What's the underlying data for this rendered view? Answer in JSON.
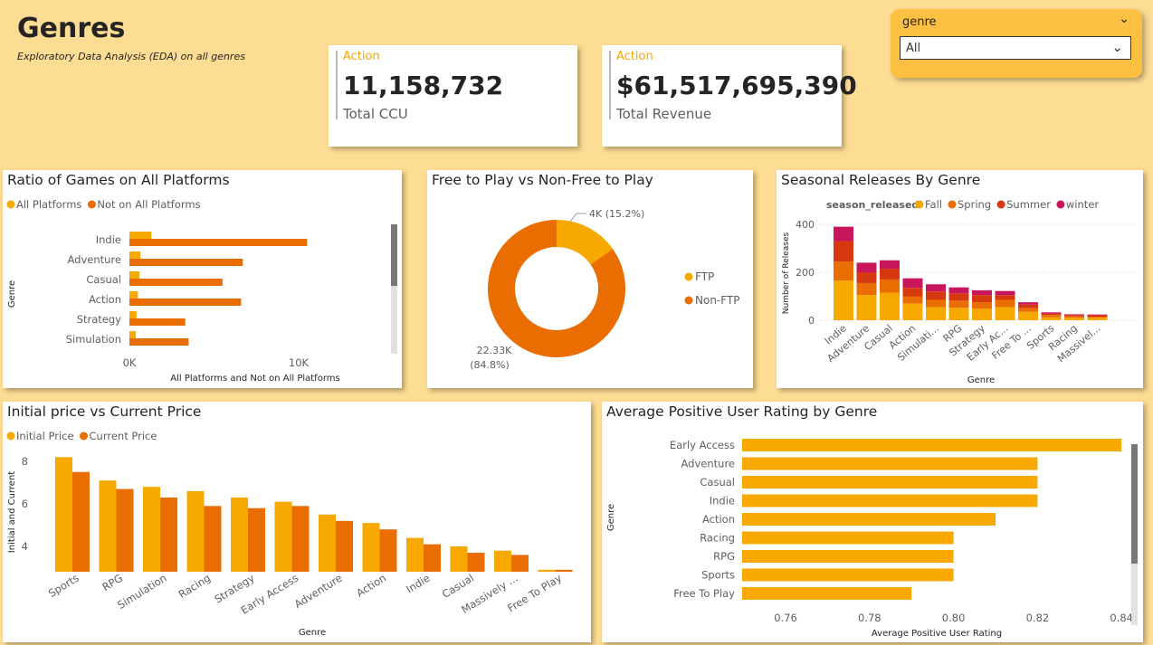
{
  "page": {
    "title": "Genres",
    "subtitle": "Exploratory Data Analysis (EDA) on all genres"
  },
  "kpis": [
    {
      "category": "Action",
      "value": "11,158,732",
      "label": "Total CCU"
    },
    {
      "category": "Action",
      "value": "$61,517,695,390",
      "label": "Total Revenue"
    }
  ],
  "slicer": {
    "header": "genre",
    "selected": "All",
    "icons": {
      "header": "chevron-down-icon",
      "dropdown": "chevron-down-icon"
    }
  },
  "colors": {
    "background": "#fddc93",
    "yellow": "#f7a900",
    "orange": "#e96d00",
    "red": "#d7390f",
    "magenta": "#c8155c",
    "kpi_category": "#f5a800",
    "slicer": "#fdc043"
  },
  "chart_data": [
    {
      "id": "platforms",
      "type": "bar",
      "orientation": "horizontal",
      "title": "Ratio of Games on All Platforms",
      "xlabel": "All Platforms and Not on All Platforms",
      "ylabel": "Genre",
      "categories": [
        "Indie",
        "Adventure",
        "Casual",
        "Action",
        "Strategy",
        "Simulation"
      ],
      "series": [
        {
          "name": "All Platforms",
          "values": [
            1300,
            650,
            600,
            500,
            420,
            380
          ]
        },
        {
          "name": "Not on All Platforms",
          "values": [
            10500,
            6700,
            5500,
            6600,
            3300,
            3500
          ]
        }
      ],
      "xticks": [
        {
          "v": 0,
          "label": "0K"
        },
        {
          "v": 10000,
          "label": "10K"
        }
      ],
      "xlim": [
        0,
        15000
      ],
      "legend": "top-left"
    },
    {
      "id": "ftp",
      "type": "pie",
      "donut": true,
      "title": "Free to Play vs Non-Free to Play",
      "labels": [
        "FTP",
        "Non-FTP"
      ],
      "values": [
        4000,
        22330
      ],
      "data_labels": [
        "4K (15.2%)",
        "22.33K (84.8%)"
      ],
      "legend": "right"
    },
    {
      "id": "seasonal",
      "type": "bar",
      "stacked": true,
      "title": "Seasonal Releases By Genre",
      "legend_title": "season_released",
      "xlabel": "Genre",
      "ylabel": "Number of Releases",
      "categories": [
        "Indie",
        "Adventure",
        "Casual",
        "Action",
        "Simulati...",
        "RPG",
        "Strategy",
        "Early Ac...",
        "Free To ...",
        "Sports",
        "Racing",
        "Massivel..."
      ],
      "series": [
        {
          "name": "Fall",
          "values": [
            165,
            105,
            115,
            70,
            55,
            52,
            48,
            55,
            35,
            12,
            10,
            10
          ]
        },
        {
          "name": "Spring",
          "values": [
            80,
            50,
            55,
            30,
            30,
            30,
            27,
            30,
            15,
            10,
            6,
            5
          ]
        },
        {
          "name": "Summer",
          "values": [
            85,
            45,
            45,
            35,
            35,
            30,
            30,
            20,
            15,
            6,
            6,
            6
          ]
        },
        {
          "name": "winter",
          "values": [
            60,
            40,
            35,
            40,
            30,
            25,
            20,
            17,
            10,
            5,
            3,
            3
          ]
        }
      ],
      "ylim": [
        0,
        460
      ],
      "yticks": [
        0,
        200,
        400
      ],
      "legend": "top"
    },
    {
      "id": "prices",
      "type": "bar",
      "title": "Initial price vs Current Price",
      "xlabel": "Genre",
      "ylabel": "Initial and Current",
      "categories": [
        "Sports",
        "RPG",
        "Simulation",
        "Racing",
        "Strategy",
        "Early Access",
        "Adventure",
        "Action",
        "Indie",
        "Casual",
        "Massively ...",
        "Free To Play"
      ],
      "series": [
        {
          "name": "Initial Price",
          "values": [
            8.2,
            7.1,
            6.8,
            6.6,
            6.3,
            6.1,
            5.5,
            5.1,
            4.4,
            4.0,
            3.8,
            2.9
          ]
        },
        {
          "name": "Current Price",
          "values": [
            7.5,
            6.7,
            6.3,
            5.9,
            5.8,
            5.9,
            5.2,
            4.8,
            4.1,
            3.7,
            3.6,
            2.9
          ]
        }
      ],
      "ylim": [
        3,
        8.8
      ],
      "yticks": [
        4,
        6,
        8
      ],
      "legend": "top-left"
    },
    {
      "id": "rating",
      "type": "bar",
      "orientation": "horizontal",
      "title": "Average Positive User Rating by Genre",
      "xlabel": "Average Positive User Rating",
      "ylabel": "Genre",
      "categories": [
        "Early Access",
        "Adventure",
        "Casual",
        "Indie",
        "Action",
        "Racing",
        "RPG",
        "Sports",
        "Free To Play"
      ],
      "values": [
        0.84,
        0.82,
        0.82,
        0.82,
        0.81,
        0.8,
        0.8,
        0.8,
        0.79
      ],
      "xlim": [
        0.75,
        0.84
      ],
      "xticks": [
        0.76,
        0.78,
        0.8,
        0.82,
        0.84
      ]
    }
  ]
}
